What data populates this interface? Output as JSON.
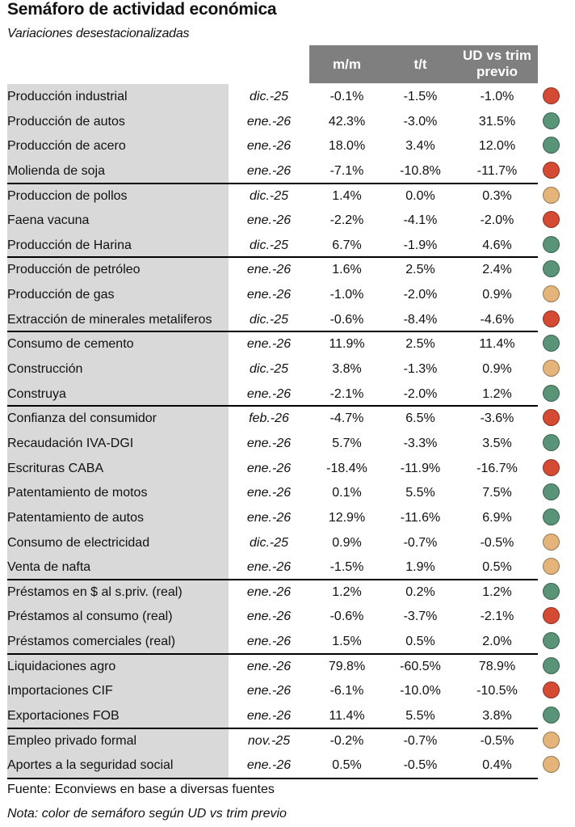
{
  "title": "Semáforo de actividad económica",
  "subtitle": "Variaciones desestacionalizadas",
  "headers": {
    "mm": "m/m",
    "tt": "t/t",
    "ud_line1": "UD vs trim",
    "ud_line2": "previo"
  },
  "colors": {
    "red": "#d44a33",
    "green": "#5a9478",
    "yellow": "#e5b47b",
    "gray_col": "#d9d9d9",
    "header_bg": "#7f7f7f"
  },
  "rows": [
    {
      "name": "Producción industrial",
      "date": "dic.-25",
      "mm": "-0.1%",
      "tt": "-1.5%",
      "ud": "-1.0%",
      "light": "red"
    },
    {
      "name": "Producción de autos",
      "date": "ene.-26",
      "mm": "42.3%",
      "tt": "-3.0%",
      "ud": "31.5%",
      "light": "green"
    },
    {
      "name": "Producción de acero",
      "date": "ene.-26",
      "mm": "18.0%",
      "tt": "3.4%",
      "ud": "12.0%",
      "light": "green"
    },
    {
      "name": "Molienda de soja",
      "date": "ene.-26",
      "mm": "-7.1%",
      "tt": "-10.8%",
      "ud": "-11.7%",
      "light": "red",
      "sep": true
    },
    {
      "name": "Produccion de pollos",
      "date": "dic.-25",
      "mm": "1.4%",
      "tt": "0.0%",
      "ud": "0.3%",
      "light": "yellow"
    },
    {
      "name": "Faena vacuna",
      "date": "ene.-26",
      "mm": "-2.2%",
      "tt": "-4.1%",
      "ud": "-2.0%",
      "light": "red"
    },
    {
      "name": "Producción de Harina",
      "date": "dic.-25",
      "mm": "6.7%",
      "tt": "-1.9%",
      "ud": "4.6%",
      "light": "green",
      "sep": true
    },
    {
      "name": "Producción de petróleo",
      "date": "ene.-26",
      "mm": "1.6%",
      "tt": "2.5%",
      "ud": "2.4%",
      "light": "green"
    },
    {
      "name": "Producción de gas",
      "date": "ene.-26",
      "mm": "-1.0%",
      "tt": "-2.0%",
      "ud": "0.9%",
      "light": "yellow"
    },
    {
      "name": "Extracción de minerales metaliferos",
      "date": "dic.-25",
      "mm": "-0.6%",
      "tt": "-8.4%",
      "ud": "-4.6%",
      "light": "red",
      "sep": true
    },
    {
      "name": "Consumo de cemento",
      "date": "ene.-26",
      "mm": "11.9%",
      "tt": "2.5%",
      "ud": "11.4%",
      "light": "green"
    },
    {
      "name": "Construcción",
      "date": "dic.-25",
      "mm": "3.8%",
      "tt": "-1.3%",
      "ud": "0.9%",
      "light": "yellow"
    },
    {
      "name": "Construya",
      "date": "ene.-26",
      "mm": "-2.1%",
      "tt": "-2.0%",
      "ud": "1.2%",
      "light": "green",
      "sep": true
    },
    {
      "name": "Confianza del consumidor",
      "date": "feb.-26",
      "mm": "-4.7%",
      "tt": "6.5%",
      "ud": "-3.6%",
      "light": "red"
    },
    {
      "name": "Recaudación IVA-DGI",
      "date": "ene.-26",
      "mm": "5.7%",
      "tt": "-3.3%",
      "ud": "3.5%",
      "light": "green"
    },
    {
      "name": "Escrituras CABA",
      "date": "ene.-26",
      "mm": "-18.4%",
      "tt": "-11.9%",
      "ud": "-16.7%",
      "light": "red"
    },
    {
      "name": "Patentamiento de motos",
      "date": "ene.-26",
      "mm": "0.1%",
      "tt": "5.5%",
      "ud": "7.5%",
      "light": "green"
    },
    {
      "name": "Patentamiento de autos",
      "date": "ene.-26",
      "mm": "12.9%",
      "tt": "-11.6%",
      "ud": "6.9%",
      "light": "green"
    },
    {
      "name": "Consumo de electricidad",
      "date": "dic.-25",
      "mm": "0.9%",
      "tt": "-0.7%",
      "ud": "-0.5%",
      "light": "yellow"
    },
    {
      "name": "Venta de nafta",
      "date": "ene.-26",
      "mm": "-1.5%",
      "tt": "1.9%",
      "ud": "0.5%",
      "light": "yellow",
      "sep": true
    },
    {
      "name": "Préstamos en $ al s.priv. (real)",
      "date": "ene.-26",
      "mm": "1.2%",
      "tt": "0.2%",
      "ud": "1.2%",
      "light": "green"
    },
    {
      "name": "Préstamos al consumo (real)",
      "date": "ene.-26",
      "mm": "-0.6%",
      "tt": "-3.7%",
      "ud": "-2.1%",
      "light": "red"
    },
    {
      "name": "Préstamos comerciales (real)",
      "date": "ene.-26",
      "mm": "1.5%",
      "tt": "0.5%",
      "ud": "2.0%",
      "light": "green",
      "sep": true
    },
    {
      "name": "Liquidaciones agro",
      "date": "ene.-26",
      "mm": "79.8%",
      "tt": "-60.5%",
      "ud": "78.9%",
      "light": "green"
    },
    {
      "name": "Importaciones CIF",
      "date": "ene.-26",
      "mm": "-6.1%",
      "tt": "-10.0%",
      "ud": "-10.5%",
      "light": "red"
    },
    {
      "name": "Exportaciones FOB",
      "date": "ene.-26",
      "mm": "11.4%",
      "tt": "5.5%",
      "ud": "3.8%",
      "light": "green",
      "sep": true
    },
    {
      "name": "Empleo privado formal",
      "date": "nov.-25",
      "mm": "-0.2%",
      "tt": "-0.7%",
      "ud": "-0.5%",
      "light": "yellow"
    },
    {
      "name": "Aportes a la seguridad social",
      "date": "ene.-26",
      "mm": "0.5%",
      "tt": "-0.5%",
      "ud": "0.4%",
      "light": "yellow"
    }
  ],
  "source": "Fuente: Econviews en base a diversas fuentes",
  "note": "Nota: color de semáforo según UD vs trim previo"
}
